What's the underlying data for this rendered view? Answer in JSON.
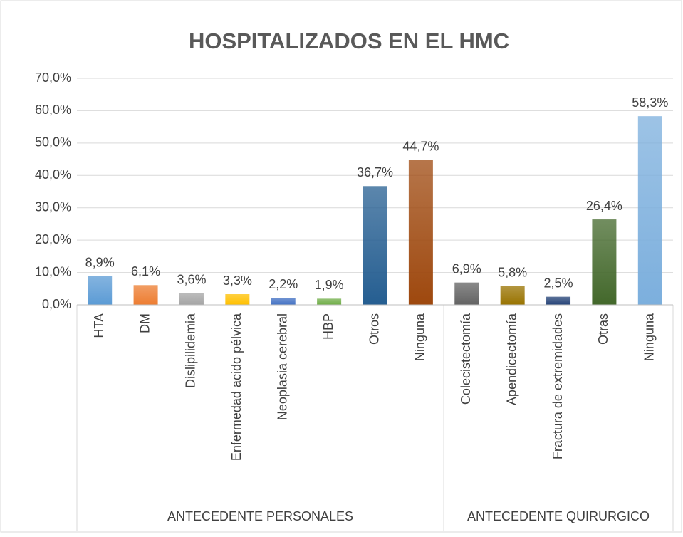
{
  "chart_data": {
    "type": "bar",
    "title": "HOSPITALIZADOS EN EL HMC",
    "groups": [
      {
        "name": "ANTECEDENTE PERSONALES",
        "categories": [
          "HTA",
          "DM",
          "Dislipilidemia",
          "Enfermedad acido pélvica",
          "Neoplasia cerebral",
          "HBP",
          "Otros",
          "Ninguna"
        ],
        "values": [
          8.9,
          6.1,
          3.6,
          3.3,
          2.2,
          1.9,
          36.7,
          44.7
        ],
        "value_labels": [
          "8,9%",
          "6,1%",
          "3,6%",
          "3,3%",
          "2,2%",
          "1,9%",
          "36,7%",
          "44,7%"
        ],
        "colors": [
          "#5b9bd5",
          "#ed7d31",
          "#a5a5a5",
          "#ffc000",
          "#4472c4",
          "#70ad47",
          "#255e91",
          "#9e480e"
        ]
      },
      {
        "name": "ANTECEDENTE QUIRURGICO",
        "categories": [
          "Colecistectomía",
          "Apendicectomía",
          "Fractura de extremidades",
          "Otras",
          "Ninguna"
        ],
        "values": [
          6.9,
          5.8,
          2.5,
          26.4,
          58.3
        ],
        "value_labels": [
          "6,9%",
          "5,8%",
          "2,5%",
          "26,4%",
          "58,3%"
        ],
        "colors": [
          "#636363",
          "#997300",
          "#264478",
          "#43682b",
          "#7cafdd"
        ]
      }
    ],
    "ylim": [
      0,
      70
    ],
    "yticks": [
      {
        "value": 0,
        "label": "0,0%"
      },
      {
        "value": 10,
        "label": "10,0%"
      },
      {
        "value": 20,
        "label": "20,0%"
      },
      {
        "value": 30,
        "label": "30,0%"
      },
      {
        "value": 40,
        "label": "40,0%"
      },
      {
        "value": 50,
        "label": "50,0%"
      },
      {
        "value": 60,
        "label": "60,0%"
      },
      {
        "value": 70,
        "label": "70,0%"
      }
    ],
    "grid": true
  }
}
